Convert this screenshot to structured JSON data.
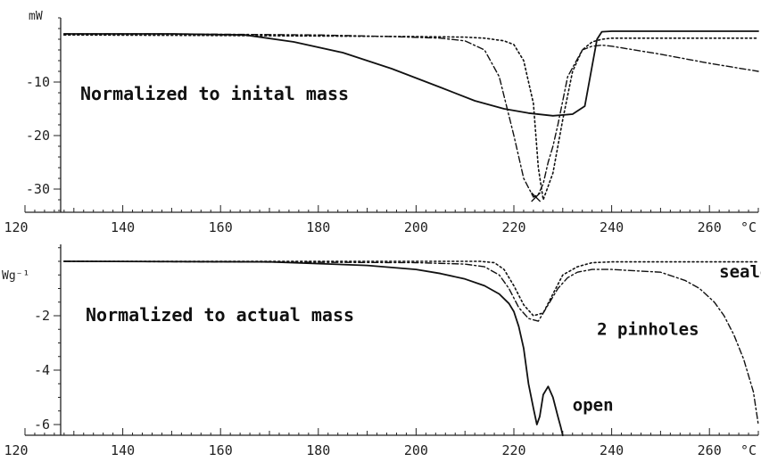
{
  "chart_data": [
    {
      "type": "line",
      "panel": "top",
      "annotation": "Normalized to inital mass",
      "y_unit": "mW",
      "x_unit": "°C",
      "xlim": [
        120,
        270
      ],
      "ylim": [
        -35,
        2
      ],
      "x_ticks": [
        120,
        140,
        160,
        180,
        200,
        220,
        240,
        260
      ],
      "y_ticks": [
        -10,
        -20,
        -30
      ],
      "series": [
        {
          "style": "solid",
          "x": [
            128,
            150,
            165,
            175,
            185,
            195,
            205,
            212,
            218,
            223,
            228,
            232,
            234.5,
            236,
            237,
            238,
            240,
            250,
            270
          ],
          "y": [
            -1,
            -1,
            -1.2,
            -2.5,
            -4.5,
            -7.5,
            -11,
            -13.5,
            -15,
            -15.8,
            -16.3,
            -16,
            -14.5,
            -7,
            -2,
            -0.6,
            -0.5,
            -0.5,
            -0.5
          ]
        },
        {
          "style": "dash-dot",
          "x": [
            128,
            150,
            165,
            180,
            195,
            205,
            210,
            214,
            217,
            220,
            222,
            224,
            225,
            226,
            227,
            228,
            229,
            231,
            234,
            236,
            238,
            240,
            250,
            260,
            270
          ],
          "y": [
            -1,
            -1,
            -1.1,
            -1.2,
            -1.5,
            -1.8,
            -2.3,
            -4,
            -9,
            -20,
            -28,
            -31.5,
            -31,
            -29,
            -25,
            -22,
            -18,
            -9,
            -4,
            -3.3,
            -3.1,
            -3.3,
            -4.8,
            -6.5,
            -8
          ]
        },
        {
          "style": "dotted",
          "x": [
            128,
            160,
            200,
            210,
            214,
            218,
            220,
            222,
            224,
            225,
            226,
            228,
            230,
            232,
            234,
            236,
            238,
            240,
            250,
            270
          ],
          "y": [
            -1.2,
            -1.3,
            -1.5,
            -1.6,
            -1.8,
            -2.3,
            -3,
            -6,
            -14,
            -26,
            -32,
            -27,
            -17,
            -8,
            -4,
            -2.5,
            -2,
            -1.8,
            -1.8,
            -1.8
          ]
        }
      ],
      "markers": [
        {
          "x": 224.5,
          "y": -31.5,
          "kind": "cross"
        }
      ]
    },
    {
      "type": "line",
      "panel": "bottom",
      "annotation": "Normalized to actual mass",
      "y_unit": "Wg⁻¹",
      "x_unit": "°C",
      "xlim": [
        120,
        270
      ],
      "ylim": [
        -6.2,
        0.6
      ],
      "x_ticks": [
        120,
        140,
        160,
        180,
        200,
        220,
        240,
        260
      ],
      "y_ticks": [
        -2,
        -4,
        -6
      ],
      "series": [
        {
          "name": "open",
          "style": "solid",
          "x": [
            128,
            170,
            190,
            200,
            205,
            210,
            214,
            217,
            219,
            220,
            221,
            222,
            223,
            224,
            224.7,
            225.3,
            226,
            227,
            228,
            229,
            229.6,
            230
          ],
          "y": [
            0,
            -0.02,
            -0.15,
            -0.3,
            -0.45,
            -0.65,
            -0.9,
            -1.2,
            -1.55,
            -1.85,
            -2.4,
            -3.2,
            -4.5,
            -5.4,
            -6,
            -5.7,
            -4.9,
            -4.6,
            -5,
            -5.7,
            -6.1,
            -6.4
          ]
        },
        {
          "name": "2 pinholes",
          "style": "dash-dot",
          "x": [
            128,
            170,
            200,
            210,
            214,
            217,
            219,
            221,
            223,
            225,
            227,
            229,
            231,
            233,
            236,
            240,
            245,
            250,
            255,
            258,
            261,
            263,
            265,
            267,
            269,
            270
          ],
          "y": [
            0,
            -0.03,
            -0.05,
            -0.1,
            -0.2,
            -0.5,
            -1,
            -1.7,
            -2.1,
            -2.2,
            -1.6,
            -1,
            -0.6,
            -0.4,
            -0.3,
            -0.3,
            -0.35,
            -0.4,
            -0.7,
            -1,
            -1.5,
            -2,
            -2.7,
            -3.6,
            -4.8,
            -6
          ]
        },
        {
          "name": "sealed",
          "style": "dotted",
          "x": [
            128,
            170,
            200,
            213,
            216,
            218,
            220,
            222,
            224,
            226,
            228,
            230,
            233,
            236,
            240,
            250,
            260,
            270
          ],
          "y": [
            0,
            0,
            0,
            0,
            -0.05,
            -0.3,
            -0.9,
            -1.6,
            -2,
            -1.9,
            -1.2,
            -0.5,
            -0.2,
            -0.05,
            -0.02,
            -0.02,
            -0.02,
            -0.02
          ]
        }
      ],
      "labels": [
        {
          "text": "sealed",
          "near_x": 262,
          "near_y": -0.4
        },
        {
          "text": "2 pinholes",
          "near_x": 237,
          "near_y": -2.5
        },
        {
          "text": "open",
          "near_x": 232,
          "near_y": -5.3
        }
      ]
    }
  ]
}
